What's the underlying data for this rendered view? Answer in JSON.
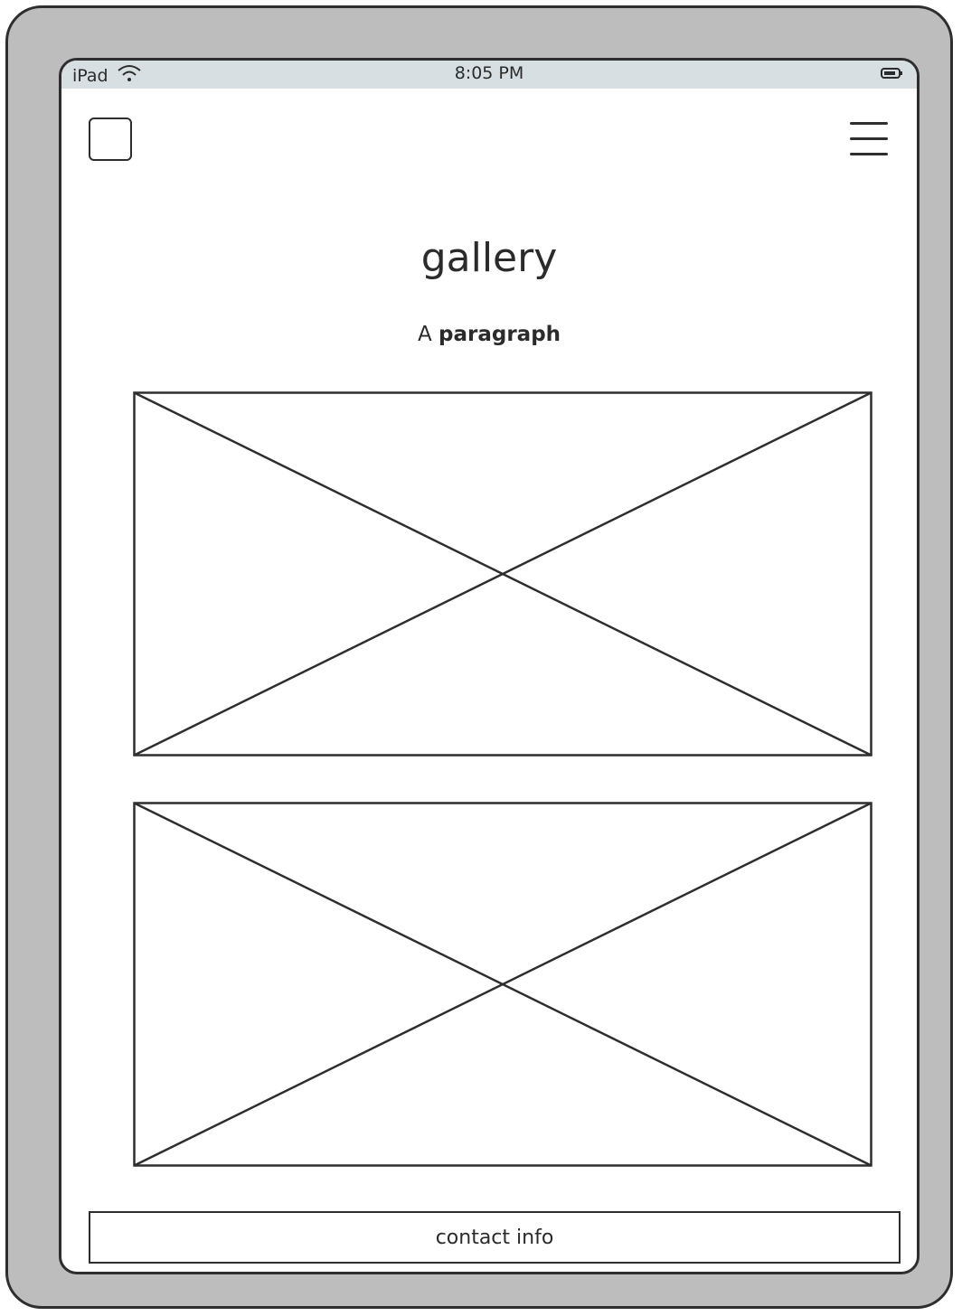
{
  "status_bar": {
    "device": "iPad",
    "time": "8:05 PM",
    "wifi_icon": "wifi-icon",
    "battery_icon": "battery-icon"
  },
  "header": {
    "logo_icon": "logo-placeholder-icon",
    "menu_icon": "hamburger-menu-icon"
  },
  "main": {
    "title": "gallery",
    "paragraph_prefix": "A",
    "paragraph_bold": "paragraph",
    "images": [
      {
        "name": "gallery-image-1"
      },
      {
        "name": "gallery-image-2"
      }
    ]
  },
  "footer": {
    "label": "contact info"
  },
  "colors": {
    "device_frame": "#bdbdbd",
    "status_bar": "#d7dfe2",
    "stroke": "#2e2e2e"
  }
}
